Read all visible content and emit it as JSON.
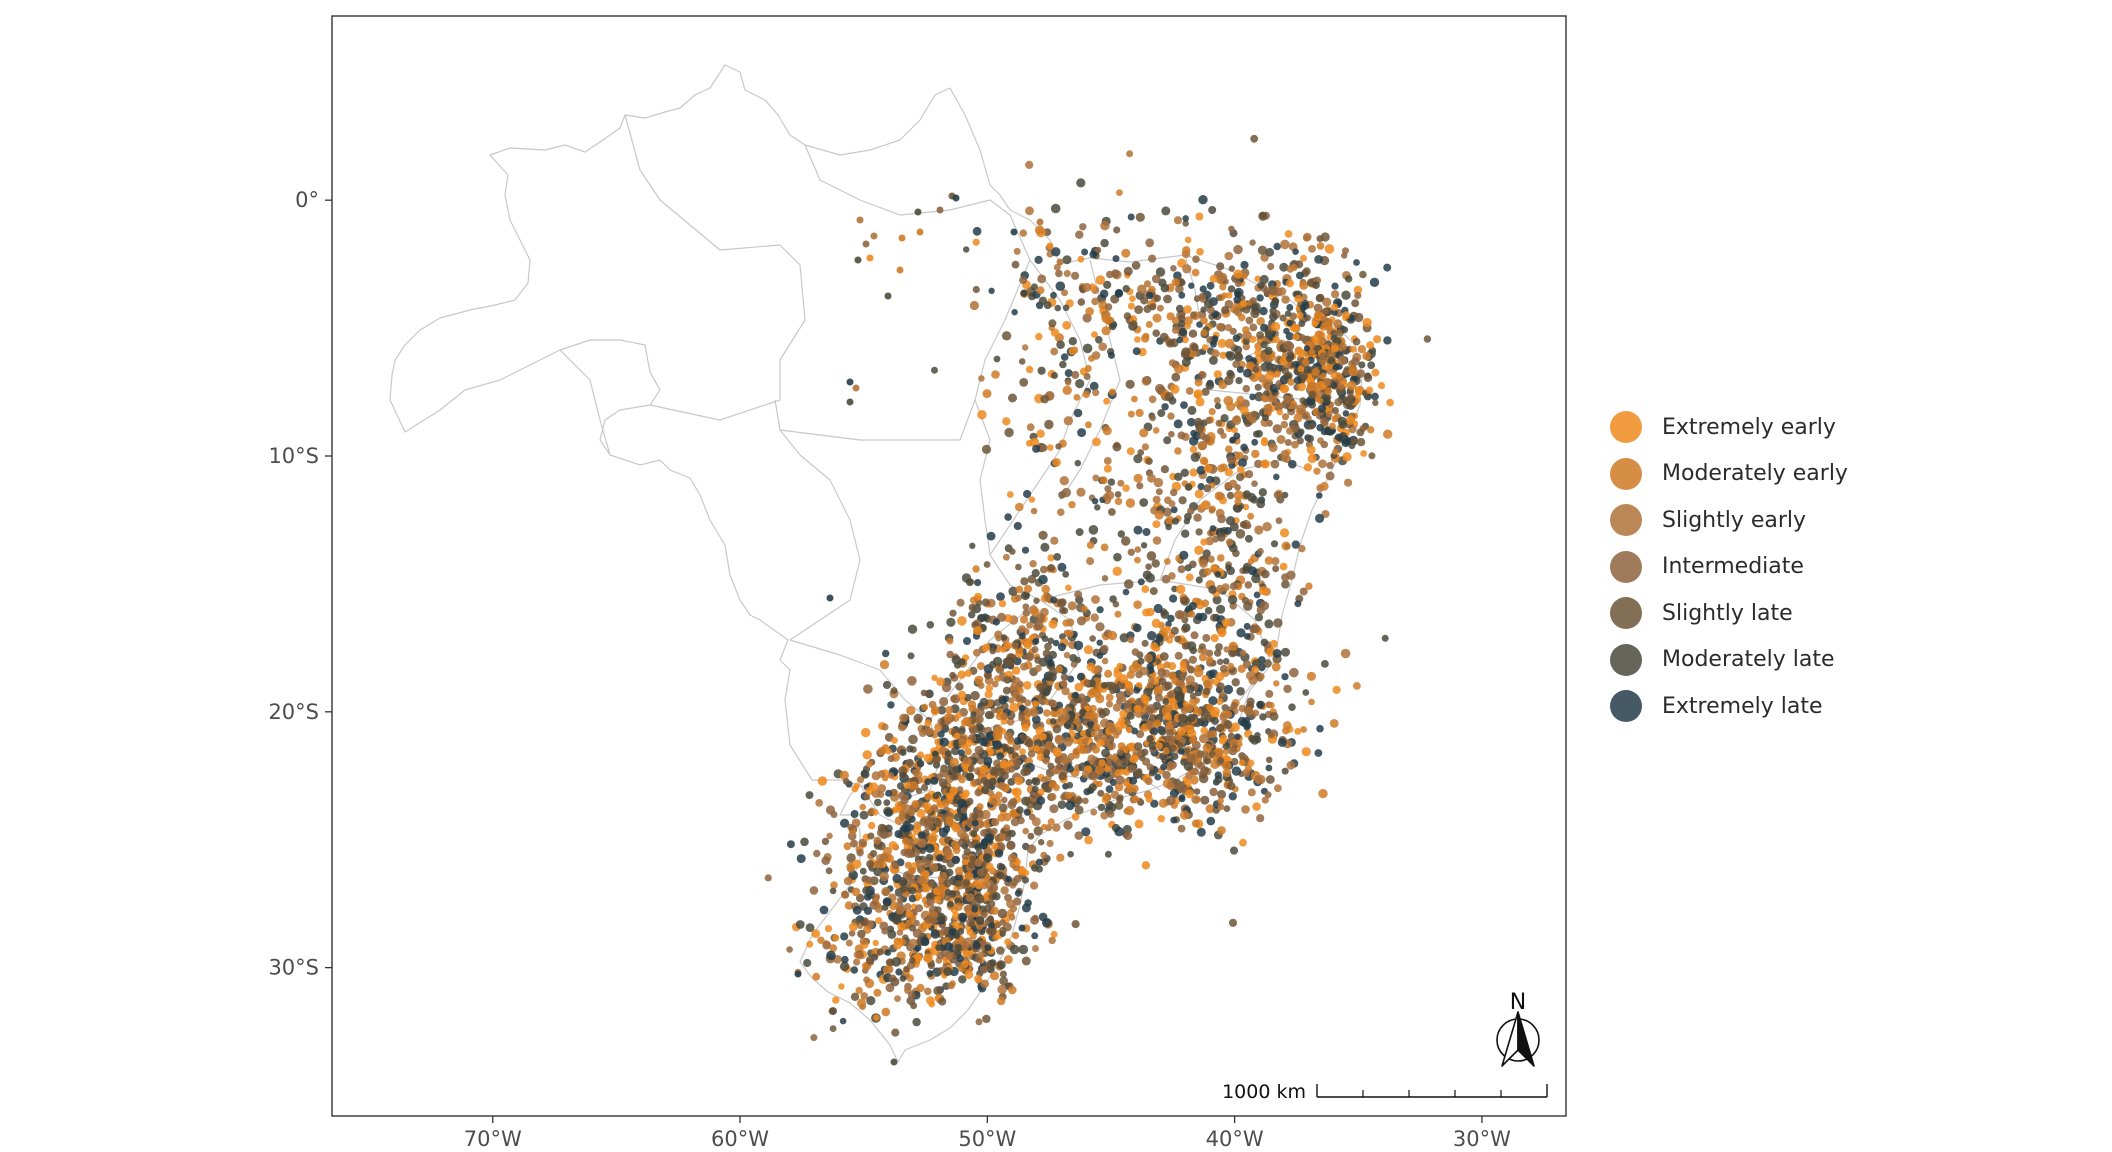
{
  "map": {
    "x_ticks": [
      {
        "lon": -70,
        "label": "70°W"
      },
      {
        "lon": -60,
        "label": "60°W"
      },
      {
        "lon": -50,
        "label": "50°W"
      },
      {
        "lon": -40,
        "label": "40°W"
      },
      {
        "lon": -30,
        "label": "30°W"
      }
    ],
    "y_ticks": [
      {
        "lat": 0,
        "label": "0°"
      },
      {
        "lat": -10,
        "label": "10°S"
      },
      {
        "lat": -20,
        "label": "20°S"
      },
      {
        "lat": -30,
        "label": "30°S"
      }
    ],
    "lon_range": [
      -76.5,
      -26.6
    ],
    "lat_range": [
      -35.8,
      7.2
    ],
    "scale_bar": {
      "label": "1000 km"
    },
    "north_arrow": {
      "label": "N"
    },
    "border_color": "#c8c8c8",
    "panel_border_color": "#333333"
  },
  "legend": {
    "items": [
      {
        "label": "Extremely early",
        "color": "#ef8a1e"
      },
      {
        "label": "Moderately early",
        "color": "#cf7a26"
      },
      {
        "label": "Slightly early",
        "color": "#b0723a"
      },
      {
        "label": "Intermediate",
        "color": "#8e6440"
      },
      {
        "label": "Slightly late",
        "color": "#6d5538"
      },
      {
        "label": "Moderately late",
        "color": "#4a4a3c"
      },
      {
        "label": "Extremely late",
        "color": "#253d4a"
      }
    ]
  }
}
